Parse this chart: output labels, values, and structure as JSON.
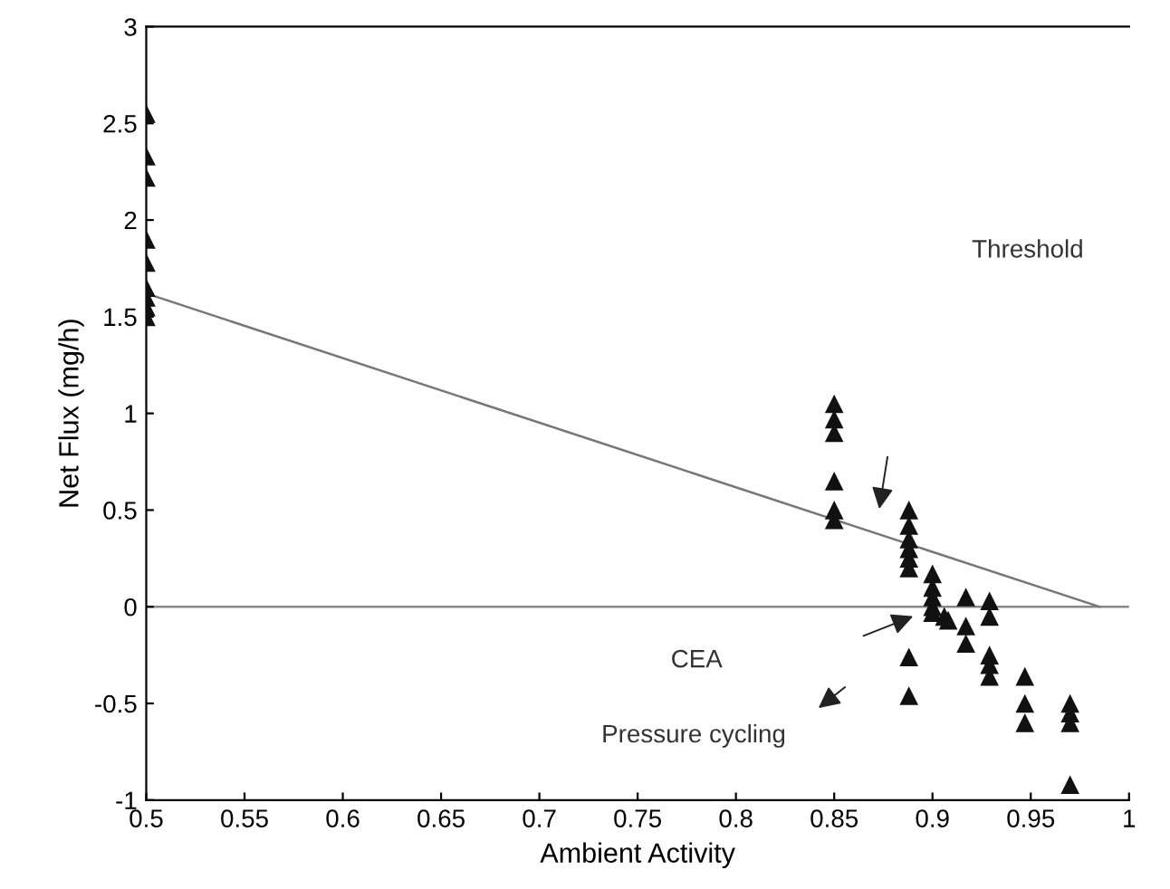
{
  "chart_data": {
    "type": "scatter",
    "xlabel": "Ambient Activity",
    "ylabel": "Net Flux (mg/h)",
    "xlim": [
      0.5,
      1
    ],
    "xticks": [
      0.5,
      0.55,
      0.6,
      0.65,
      0.7,
      0.75,
      0.8,
      0.85,
      0.9,
      0.95,
      1
    ],
    "ylim": [
      -1,
      3
    ],
    "yticks": [
      -1,
      -0.5,
      0,
      0.5,
      1,
      1.5,
      2,
      2.5,
      3
    ],
    "grid": false,
    "legend": false,
    "marker": "triangle",
    "series": [
      {
        "color": "#111111",
        "x": [
          0.5,
          0.5,
          0.5,
          0.5,
          0.5,
          0.5,
          0.5,
          0.5,
          0.5,
          0.85,
          0.85,
          0.85,
          0.85,
          0.85,
          0.85,
          0.888,
          0.888,
          0.888,
          0.888,
          0.888,
          0.888,
          0.888,
          0.888,
          0.9,
          0.9,
          0.9,
          0.9,
          0.9,
          0.906,
          0.908,
          0.917,
          0.917,
          0.917,
          0.929,
          0.929,
          0.929,
          0.929,
          0.929,
          0.947,
          0.947,
          0.947,
          0.97,
          0.97,
          0.97,
          0.97
        ],
        "values": [
          2.55,
          2.33,
          2.22,
          1.9,
          1.78,
          1.65,
          1.6,
          1.55,
          1.5,
          1.05,
          0.97,
          0.9,
          0.65,
          0.5,
          0.45,
          0.5,
          0.42,
          0.35,
          0.3,
          0.25,
          0.2,
          -0.26,
          -0.46,
          0.17,
          0.1,
          0.05,
          0.0,
          -0.03,
          -0.05,
          -0.07,
          0.05,
          -0.1,
          -0.19,
          0.03,
          -0.05,
          -0.25,
          -0.3,
          -0.36,
          -0.36,
          -0.5,
          -0.6,
          -0.5,
          -0.55,
          -0.6,
          -0.92
        ]
      },
      {
        "type": "line",
        "color": "#777777",
        "marker": "none",
        "x": [
          0.5,
          0.985
        ],
        "values": [
          1.62,
          0
        ]
      }
    ],
    "ref_lines": [
      {
        "axis": "y",
        "value": 0,
        "color": "#888888"
      }
    ],
    "annotations": [
      "Threshold",
      "CEA",
      "Pressure cycling"
    ]
  }
}
